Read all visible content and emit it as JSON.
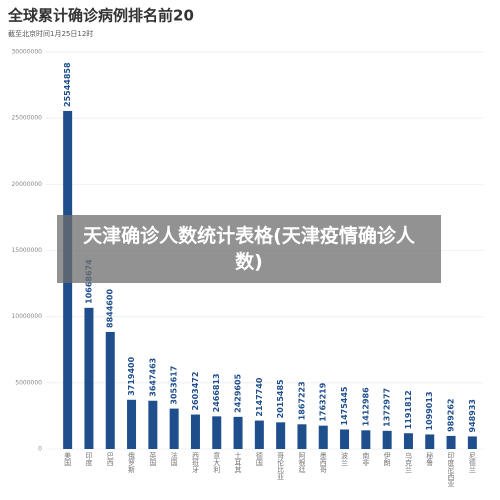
{
  "chart_data": {
    "type": "bar",
    "title": "全球累计确诊病例排名前20",
    "subtitle": "截至北京时间1月25日12时",
    "categories": [
      "美国",
      "印度",
      "巴西",
      "俄罗斯",
      "英国",
      "法国",
      "西班牙",
      "意大利",
      "土耳其",
      "德国",
      "哥伦比亚",
      "阿根廷",
      "墨西哥",
      "波兰",
      "南非",
      "伊朗",
      "乌克兰",
      "秘鲁",
      "印度尼西亚",
      "尼德兰"
    ],
    "values": [
      25544858,
      10668674,
      8844600,
      3719400,
      3647463,
      3053617,
      2603472,
      2466813,
      2429605,
      2147740,
      2015485,
      1867223,
      1763219,
      1475445,
      1412986,
      1372977,
      1191812,
      1099013,
      989262,
      948933
    ],
    "color": "#1f4e8c",
    "ylim": [
      0,
      30000000
    ],
    "yticks": [
      0,
      5000000,
      10000000,
      15000000,
      20000000,
      25000000,
      30000000
    ],
    "grid": true
  },
  "overlay": {
    "text": "天津确诊人数统计表格(天津疫情确诊人数)"
  }
}
